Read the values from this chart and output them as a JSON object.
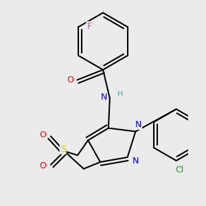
{
  "bg_color": "#ebebeb",
  "bond_color": "#000000",
  "atom_colors": {
    "O": "#ff0000",
    "N": "#0000cc",
    "S": "#cccc00",
    "F": "#cc44cc",
    "Cl": "#00aa00",
    "H": "#44aaaa",
    "C": "#000000"
  },
  "bond_width": 1.5
}
